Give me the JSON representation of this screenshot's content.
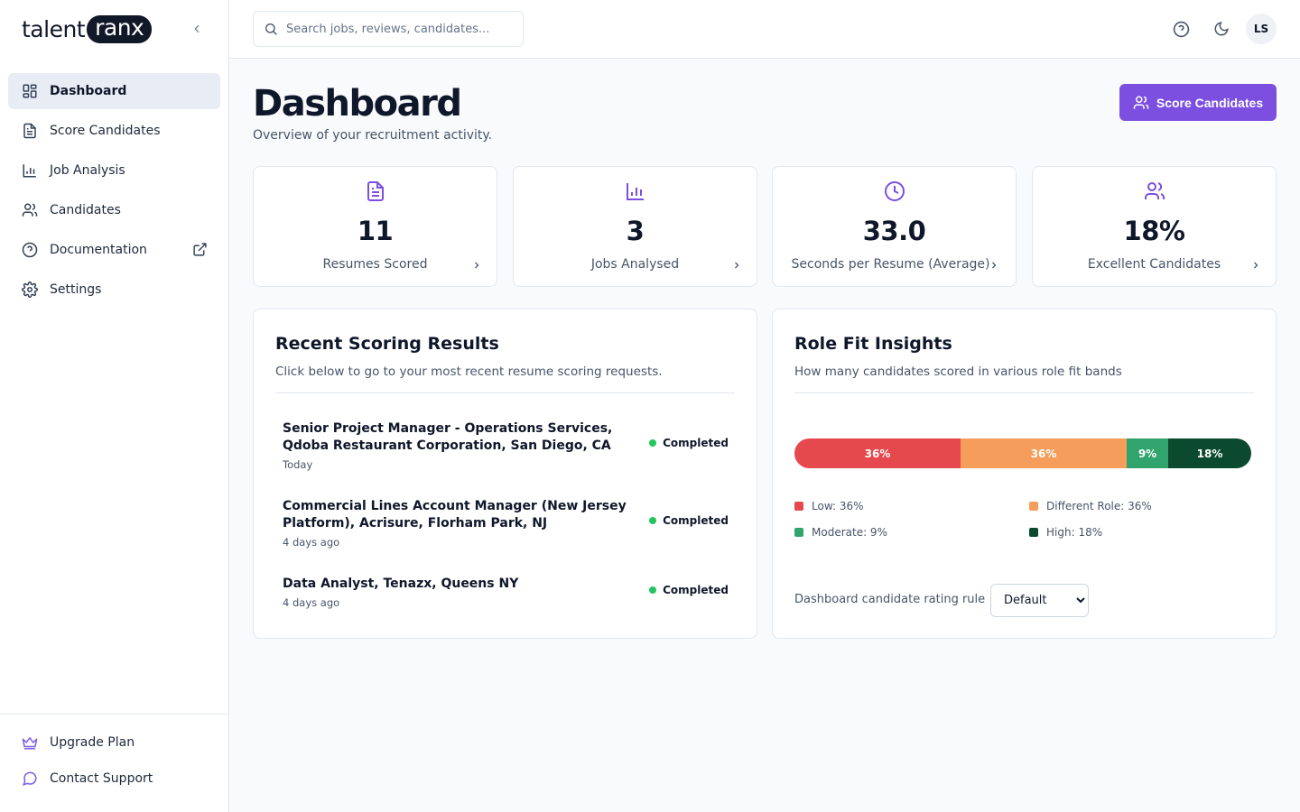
{
  "brand": {
    "text_left": "talent",
    "text_pill": "ranx"
  },
  "nav": {
    "items": [
      {
        "label": "Dashboard"
      },
      {
        "label": "Score Candidates"
      },
      {
        "label": "Job Analysis"
      },
      {
        "label": "Candidates"
      },
      {
        "label": "Documentation"
      },
      {
        "label": "Settings"
      }
    ],
    "bottom": [
      {
        "label": "Upgrade Plan"
      },
      {
        "label": "Contact Support"
      }
    ]
  },
  "header": {
    "search_placeholder": "Search jobs, reviews, candidates...",
    "avatar_initials": "LS"
  },
  "page": {
    "title": "Dashboard",
    "subtitle": "Overview of your recruitment activity.",
    "primary_button": "Score Candidates"
  },
  "stats": [
    {
      "value": "11",
      "label": "Resumes Scored",
      "icon": "document-icon"
    },
    {
      "value": "3",
      "label": "Jobs Analysed",
      "icon": "bar-chart-icon"
    },
    {
      "value": "33.0",
      "label": "Seconds per Resume (Average)",
      "icon": "clock-icon"
    },
    {
      "value": "18%",
      "label": "Excellent Candidates",
      "icon": "users-icon"
    }
  ],
  "recent": {
    "title": "Recent Scoring Results",
    "subtitle": "Click below to go to your most recent resume scoring requests.",
    "items": [
      {
        "title": "Senior Project Manager - Operations Services, Qdoba Restaurant Corporation, San Diego, CA",
        "time": "Today",
        "status": "Completed"
      },
      {
        "title": "Commercial Lines Account Manager (New Jersey Platform), Acrisure, Florham Park, NJ",
        "time": "4 days ago",
        "status": "Completed"
      },
      {
        "title": "Data Analyst, Tenazx, Queens NY",
        "time": "4 days ago",
        "status": "Completed"
      }
    ]
  },
  "insights": {
    "title": "Role Fit Insights",
    "subtitle": "How many candidates scored in various role fit bands",
    "bands": [
      {
        "name": "Low",
        "pct": 36,
        "label": "36%",
        "legend": "Low: 36%",
        "color": "#e5484d"
      },
      {
        "name": "Different Role",
        "pct": 36,
        "label": "36%",
        "legend": "Different Role: 36%",
        "color": "#f59e5b"
      },
      {
        "name": "Moderate",
        "pct": 9,
        "label": "9%",
        "legend": "Moderate: 9%",
        "color": "#30a46c"
      },
      {
        "name": "High",
        "pct": 18,
        "label": "18%",
        "legend": "High: 18%",
        "color": "#0b4a2e"
      }
    ],
    "rule_label": "Dashboard candidate rating rule",
    "rule_value": "Default"
  },
  "colors": {
    "accent": "#7c4fe0",
    "status_completed": "#22c55e"
  }
}
